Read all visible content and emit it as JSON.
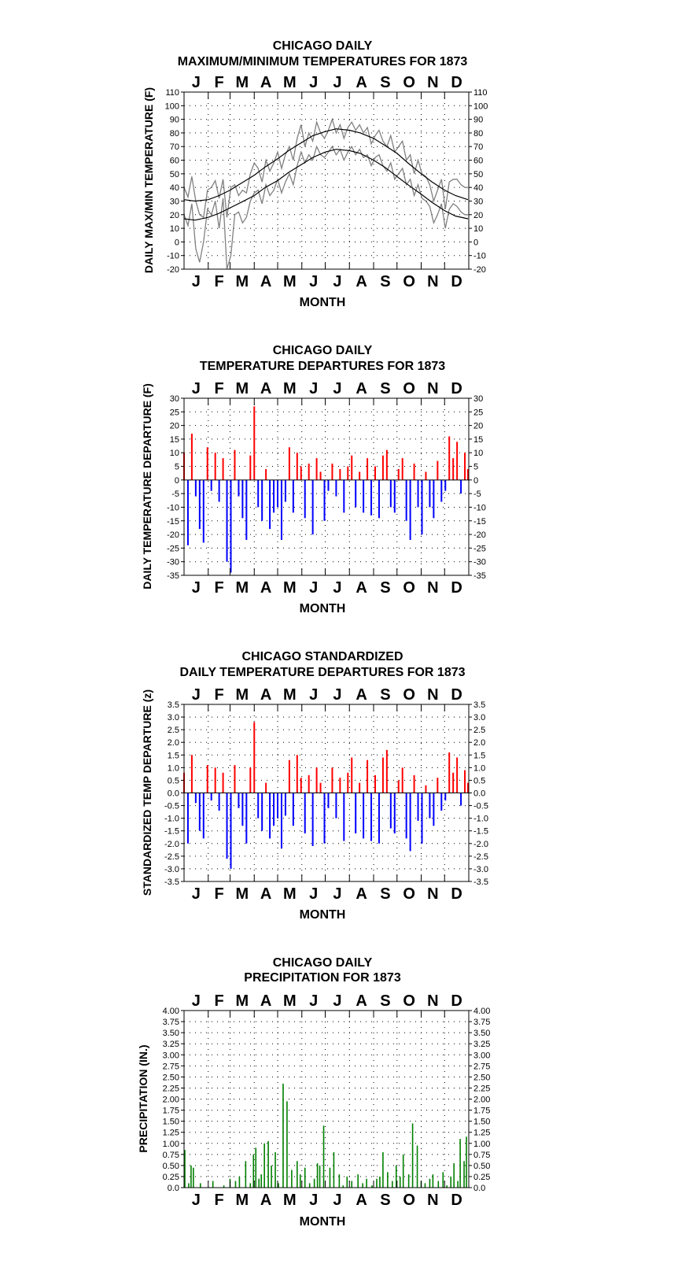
{
  "chart_data": [
    {
      "type": "line",
      "title_line1": "CHICAGO DAILY",
      "title_line2": "MAXIMUM/MINIMUM TEMPERATURES FOR 1873",
      "xlabel": "MONTH",
      "ylabel": "DAILY MAX/MIN TEMPERATURE (F)",
      "ylim": [
        -20,
        110
      ],
      "yticks": [
        "-20",
        "-10",
        "0",
        "10",
        "20",
        "30",
        "40",
        "50",
        "60",
        "70",
        "80",
        "90",
        "100",
        "110"
      ],
      "months": [
        "J",
        "F",
        "M",
        "A",
        "M",
        "J",
        "J",
        "A",
        "S",
        "O",
        "N",
        "D"
      ],
      "colors": {
        "observed": "#808080",
        "normal": "#000000"
      },
      "series": [
        {
          "name": "",
          "x_day": [
            1,
            15,
            32,
            46,
            60,
            74,
            91,
            105,
            121,
            135,
            152,
            166,
            182,
            196,
            213,
            227,
            244,
            258,
            274,
            288,
            305,
            319,
            335,
            349,
            365
          ],
          "values": [
            31,
            30,
            31,
            34,
            38,
            43,
            49,
            55,
            61,
            67,
            73,
            78,
            81,
            83,
            82,
            80,
            76,
            71,
            65,
            58,
            50,
            44,
            38,
            34,
            31
          ]
        },
        {
          "name": "",
          "x_day": [
            1,
            15,
            32,
            46,
            60,
            74,
            91,
            105,
            121,
            135,
            152,
            166,
            182,
            196,
            213,
            227,
            244,
            258,
            274,
            288,
            305,
            319,
            335,
            349,
            365
          ],
          "values": [
            17,
            16,
            18,
            21,
            25,
            29,
            34,
            40,
            45,
            51,
            57,
            62,
            66,
            68,
            67,
            65,
            60,
            55,
            48,
            42,
            35,
            29,
            23,
            19,
            17
          ]
        },
        {
          "name": "",
          "x_day": [
            1,
            6,
            11,
            16,
            21,
            26,
            31,
            36,
            41,
            46,
            51,
            56,
            61,
            66,
            71,
            76,
            81,
            86,
            91,
            96,
            101,
            106,
            111,
            116,
            121,
            126,
            131,
            136,
            141,
            146,
            151,
            156,
            161,
            166,
            171,
            176,
            181,
            186,
            191,
            196,
            201,
            206,
            211,
            216,
            221,
            226,
            231,
            236,
            241,
            246,
            251,
            256,
            261,
            266,
            271,
            276,
            281,
            286,
            291,
            296,
            301,
            306,
            311,
            316,
            321,
            326,
            331,
            336,
            341,
            346,
            351,
            356,
            361,
            365
          ],
          "values": [
            40,
            33,
            48,
            30,
            20,
            18,
            38,
            40,
            45,
            32,
            46,
            18,
            40,
            42,
            34,
            38,
            36,
            50,
            58,
            54,
            44,
            60,
            52,
            58,
            66,
            54,
            64,
            70,
            60,
            76,
            86,
            70,
            80,
            74,
            88,
            80,
            76,
            82,
            90,
            80,
            86,
            76,
            84,
            88,
            82,
            86,
            80,
            84,
            72,
            78,
            82,
            74,
            70,
            78,
            66,
            70,
            74,
            60,
            64,
            50,
            60,
            50,
            48,
            42,
            30,
            38,
            46,
            24,
            44,
            46,
            46,
            42,
            40,
            40
          ]
        },
        {
          "name": "",
          "x_day": [
            1,
            6,
            11,
            16,
            21,
            26,
            31,
            36,
            41,
            46,
            51,
            56,
            61,
            66,
            71,
            76,
            81,
            86,
            91,
            96,
            101,
            106,
            111,
            116,
            121,
            126,
            131,
            136,
            141,
            146,
            151,
            156,
            161,
            166,
            171,
            176,
            181,
            186,
            191,
            196,
            201,
            206,
            211,
            216,
            221,
            226,
            231,
            236,
            241,
            246,
            251,
            256,
            261,
            266,
            271,
            276,
            281,
            286,
            291,
            296,
            301,
            306,
            311,
            316,
            321,
            326,
            331,
            336,
            341,
            346,
            351,
            356,
            361,
            365
          ],
          "values": [
            20,
            12,
            28,
            -5,
            -15,
            0,
            24,
            20,
            30,
            10,
            32,
            -20,
            -10,
            20,
            22,
            14,
            18,
            30,
            36,
            38,
            28,
            42,
            34,
            38,
            46,
            36,
            44,
            50,
            42,
            56,
            66,
            58,
            64,
            60,
            70,
            64,
            62,
            66,
            70,
            64,
            68,
            60,
            66,
            70,
            64,
            68,
            62,
            64,
            56,
            62,
            64,
            56,
            52,
            58,
            46,
            50,
            54,
            42,
            46,
            34,
            42,
            32,
            30,
            26,
            14,
            20,
            28,
            10,
            24,
            28,
            26,
            22,
            20,
            20
          ]
        }
      ]
    },
    {
      "type": "bar",
      "title_line1": "CHICAGO DAILY",
      "title_line2": "TEMPERATURE DEPARTURES FOR 1873",
      "xlabel": "MONTH",
      "ylabel": "DAILY TEMPERATURE DEPARTURE (F)",
      "ylim": [
        -35,
        30
      ],
      "yticks": [
        "-35",
        "-30",
        "-25",
        "-20",
        "-15",
        "-10",
        "-5",
        "0",
        "5",
        "10",
        "15",
        "20",
        "25",
        "30"
      ],
      "months": [
        "J",
        "F",
        "M",
        "A",
        "M",
        "J",
        "J",
        "A",
        "S",
        "O",
        "N",
        "D"
      ],
      "colors": {
        "positive": "#ff0000",
        "negative": "#0000ff"
      },
      "x_day": [
        1,
        6,
        11,
        16,
        21,
        26,
        31,
        36,
        41,
        46,
        51,
        56,
        61,
        66,
        71,
        76,
        81,
        86,
        91,
        96,
        101,
        106,
        111,
        116,
        121,
        126,
        131,
        136,
        141,
        146,
        151,
        156,
        161,
        166,
        171,
        176,
        181,
        186,
        191,
        196,
        201,
        206,
        211,
        216,
        221,
        226,
        231,
        236,
        241,
        246,
        251,
        256,
        261,
        266,
        271,
        276,
        281,
        286,
        291,
        296,
        301,
        306,
        311,
        316,
        321,
        326,
        331,
        336,
        341,
        346,
        351,
        356,
        361,
        365
      ],
      "values": [
        10,
        -24,
        17,
        -6,
        -18,
        -23,
        12,
        -4,
        10,
        -8,
        8,
        -30,
        -34,
        11,
        -6,
        -14,
        -22,
        9,
        27,
        -10,
        -15,
        4,
        -18,
        -12,
        -10,
        -22,
        -8,
        12,
        -12,
        10,
        5,
        -14,
        6,
        -20,
        8,
        3,
        -15,
        -4,
        6,
        -6,
        4,
        -12,
        5,
        9,
        -10,
        3,
        -12,
        8,
        -13,
        5,
        -14,
        9,
        11,
        -10,
        -12,
        4,
        8,
        -15,
        -22,
        6,
        -10,
        -20,
        3,
        -10,
        -14,
        7,
        -8,
        -4,
        16,
        8,
        14,
        -5,
        10,
        4
      ]
    },
    {
      "type": "bar",
      "title_line1": "CHICAGO STANDARDIZED",
      "title_line2": "DAILY TEMPERATURE DEPARTURES FOR 1873",
      "xlabel": "",
      "ylabel": "STANDARDIZED TEMP DEPARTURE (z)",
      "ylim": [
        -3.5,
        3.5
      ],
      "yticks": [
        "-3.5",
        "-3.0",
        "-2.5",
        "-2.0",
        "-1.5",
        "-1.0",
        "-0.5",
        "0.0",
        "0.5",
        "1.0",
        "1.5",
        "2.0",
        "2.5",
        "3.0",
        "3.5"
      ],
      "months": [
        "J",
        "F",
        "M",
        "A",
        "M",
        "J",
        "J",
        "A",
        "S",
        "O",
        "N",
        "D"
      ],
      "colors": {
        "positive": "#ff0000",
        "negative": "#0000ff"
      },
      "x_day": [
        1,
        6,
        11,
        16,
        21,
        26,
        31,
        36,
        41,
        46,
        51,
        56,
        61,
        66,
        71,
        76,
        81,
        86,
        91,
        96,
        101,
        106,
        111,
        116,
        121,
        126,
        131,
        136,
        141,
        146,
        151,
        156,
        161,
        166,
        171,
        176,
        181,
        186,
        191,
        196,
        201,
        206,
        211,
        216,
        221,
        226,
        231,
        236,
        241,
        246,
        251,
        256,
        261,
        266,
        271,
        276,
        281,
        286,
        291,
        296,
        301,
        306,
        311,
        316,
        321,
        326,
        331,
        336,
        341,
        346,
        351,
        356,
        361,
        365
      ],
      "values": [
        0.8,
        -2.0,
        1.5,
        -0.4,
        -1.5,
        -1.8,
        1.1,
        -0.3,
        1.0,
        -0.7,
        0.8,
        -2.6,
        -3.0,
        1.1,
        -0.6,
        -1.3,
        -2.0,
        1.0,
        2.8,
        -1.0,
        -1.5,
        0.4,
        -1.8,
        -1.3,
        -1.0,
        -2.2,
        -0.9,
        1.3,
        -1.3,
        1.5,
        0.6,
        -1.6,
        0.7,
        -2.1,
        1.0,
        0.4,
        -2.0,
        -0.6,
        1.0,
        -1.0,
        0.6,
        -1.9,
        0.8,
        1.4,
        -1.6,
        0.4,
        -1.8,
        1.3,
        -1.9,
        0.7,
        -2.0,
        1.4,
        1.7,
        -1.4,
        -1.6,
        0.5,
        1.0,
        -1.8,
        -2.3,
        0.7,
        -1.1,
        -2.0,
        0.3,
        -1.0,
        -1.3,
        0.6,
        -0.7,
        -0.3,
        1.6,
        0.8,
        1.4,
        -0.5,
        0.9,
        0.4
      ]
    },
    {
      "type": "bar",
      "title_line1": "CHICAGO DAILY",
      "title_line2": "PRECIPITATION FOR 1873",
      "xlabel": "MONTH",
      "ylabel": "PRECIPITATION (IN.)",
      "ylim": [
        0,
        4.0
      ],
      "yticks": [
        "0.0",
        "0.25",
        "0.50",
        "0.75",
        "1.00",
        "1.25",
        "1.50",
        "1.75",
        "2.00",
        "2.25",
        "2.50",
        "2.75",
        "3.00",
        "3.25",
        "3.50",
        "3.75",
        "4.00"
      ],
      "months": [
        "J",
        "F",
        "M",
        "A",
        "M",
        "J",
        "J",
        "A",
        "S",
        "O",
        "N",
        "D"
      ],
      "colors": {
        "bars": "#008000"
      },
      "x_day": [
        2,
        7,
        10,
        13,
        22,
        38,
        52,
        60,
        67,
        72,
        80,
        86,
        90,
        93,
        97,
        100,
        104,
        109,
        113,
        118,
        122,
        128,
        133,
        139,
        146,
        150,
        156,
        162,
        168,
        172,
        175,
        180,
        188,
        193,
        200,
        205,
        210,
        216,
        224,
        230,
        235,
        242,
        248,
        252,
        256,
        262,
        268,
        273,
        278,
        282,
        289,
        294,
        300,
        305,
        310,
        316,
        320,
        327,
        333,
        338,
        343,
        347,
        352,
        355,
        360,
        363
      ],
      "values": [
        0.85,
        0.1,
        0.5,
        0.45,
        0.1,
        0.15,
        0.05,
        0.2,
        0.15,
        0.25,
        0.6,
        0.1,
        0.75,
        0.9,
        0.2,
        0.3,
        1.0,
        1.05,
        0.5,
        0.8,
        0.1,
        2.35,
        1.95,
        0.4,
        0.6,
        0.3,
        0.45,
        0.1,
        0.2,
        0.55,
        0.5,
        1.4,
        0.45,
        0.8,
        0.3,
        0.05,
        0.25,
        0.15,
        0.3,
        0.1,
        0.2,
        0.05,
        0.2,
        0.25,
        0.8,
        0.35,
        0.15,
        0.5,
        0.25,
        0.75,
        0.3,
        1.45,
        0.95,
        0.15,
        0.1,
        0.2,
        0.3,
        0.15,
        0.35,
        0.05,
        0.25,
        0.55,
        0.15,
        1.1,
        0.6,
        1.15
      ]
    }
  ]
}
